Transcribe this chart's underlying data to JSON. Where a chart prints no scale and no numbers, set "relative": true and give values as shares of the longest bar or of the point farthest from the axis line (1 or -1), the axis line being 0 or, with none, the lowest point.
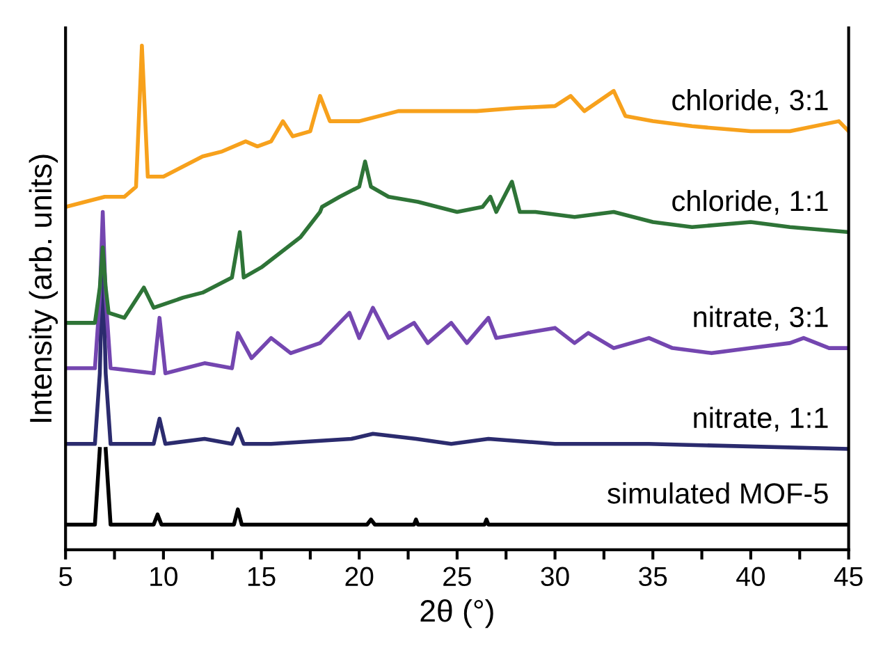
{
  "chart_data": {
    "type": "line",
    "relative": true,
    "xlabel": "2θ (°)",
    "ylabel": "Intensity (arb. units)",
    "xlim": [
      5,
      45
    ],
    "xticks": [
      5,
      {
        "value": 7.5,
        "label": null
      },
      10,
      {
        "value": 12.5,
        "label": null
      },
      15,
      {
        "value": 17.5,
        "label": null
      },
      20,
      {
        "value": 22.5,
        "label": null
      },
      25,
      {
        "value": 27.5,
        "label": null
      },
      30,
      {
        "value": 32.5,
        "label": null
      },
      35,
      {
        "value": 37.5,
        "label": null
      },
      40,
      {
        "value": 42.5,
        "label": null
      },
      45
    ],
    "tick_labels": "x",
    "grid": false,
    "legend": false,
    "marker": "none",
    "line_style": "solid",
    "series": [
      {
        "name": "simulated MOF-5",
        "color": "#000000",
        "x": [
          5,
          6.5,
          6.75,
          6.9,
          7.05,
          7.3,
          9.5,
          9.7,
          9.9,
          13.6,
          13.8,
          14.0,
          20.4,
          20.6,
          20.8,
          22.8,
          22.9,
          23.0,
          26.4,
          26.5,
          26.6,
          45
        ],
        "values": [
          0.05,
          0.05,
          0.2,
          null,
          0.2,
          0.05,
          0.05,
          0.07,
          0.05,
          0.05,
          0.08,
          0.05,
          0.05,
          0.06,
          0.05,
          0.05,
          0.06,
          0.05,
          0.05,
          0.06,
          0.05,
          0.05
        ]
      },
      {
        "name": "nitrate, 1:1",
        "color": "#2b2b6e",
        "x": [
          5,
          6.5,
          6.75,
          6.9,
          7.05,
          7.3,
          9.5,
          9.8,
          10.1,
          12.1,
          13.5,
          13.8,
          14.1,
          15.5,
          19.6,
          20.7,
          22.9,
          24.7,
          26.6,
          30.0,
          34.8,
          45
        ],
        "values": [
          0.21,
          0.21,
          0.35,
          0.58,
          0.35,
          0.21,
          0.21,
          0.26,
          0.21,
          0.22,
          0.21,
          0.24,
          0.21,
          0.21,
          0.22,
          0.23,
          0.22,
          0.21,
          0.22,
          0.21,
          0.21,
          0.2
        ]
      },
      {
        "name": "nitrate, 3:1",
        "color": "#7446b0",
        "x": [
          5,
          6.5,
          6.75,
          6.9,
          7.05,
          7.3,
          9.5,
          9.8,
          10.1,
          12.1,
          13.5,
          13.8,
          14.5,
          15.5,
          16.5,
          18,
          19.5,
          20,
          20.7,
          21.5,
          22.8,
          23.5,
          24.7,
          25.5,
          26.6,
          27,
          30,
          31,
          31.7,
          33,
          34.8,
          36,
          38,
          40,
          42,
          42.7,
          44,
          45
        ],
        "values": [
          0.36,
          0.36,
          0.5,
          0.67,
          0.5,
          0.36,
          0.35,
          0.46,
          0.35,
          0.37,
          0.36,
          0.43,
          0.38,
          0.42,
          0.39,
          0.41,
          0.47,
          0.42,
          0.48,
          0.42,
          0.45,
          0.41,
          0.45,
          0.41,
          0.46,
          0.42,
          0.44,
          0.41,
          0.43,
          0.4,
          0.42,
          0.4,
          0.39,
          0.4,
          0.41,
          0.42,
          0.4,
          0.4
        ]
      },
      {
        "name": "chloride, 1:1",
        "color": "#2e7437",
        "x": [
          5,
          6.5,
          6.75,
          6.9,
          7.05,
          7.2,
          8,
          9,
          9.5,
          11,
          12,
          13,
          13.5,
          13.9,
          14.1,
          15,
          16,
          17,
          18,
          18.1,
          19,
          20,
          20.3,
          20.6,
          21.5,
          23,
          24,
          25,
          26.3,
          26.7,
          27,
          27.8,
          28.2,
          29,
          31,
          33,
          35,
          37,
          40,
          42,
          45
        ],
        "values": [
          0.45,
          0.45,
          0.52,
          0.6,
          0.52,
          0.47,
          0.46,
          0.52,
          0.48,
          0.5,
          0.51,
          0.53,
          0.54,
          0.63,
          0.54,
          0.56,
          0.59,
          0.62,
          0.67,
          0.68,
          0.7,
          0.72,
          0.77,
          0.72,
          0.7,
          0.69,
          0.68,
          0.67,
          0.68,
          0.7,
          0.67,
          0.73,
          0.67,
          0.67,
          0.66,
          0.67,
          0.65,
          0.64,
          0.65,
          0.64,
          0.63
        ]
      },
      {
        "name": "chloride, 3:1",
        "color": "#f7a11c",
        "x": [
          5,
          6,
          7,
          8,
          8.6,
          8.9,
          9.2,
          9.5,
          10,
          11,
          12,
          13,
          14.2,
          14.8,
          15.5,
          16.1,
          16.6,
          17.5,
          18,
          18.5,
          20,
          22,
          24,
          26,
          28,
          30,
          30.8,
          31.5,
          33,
          33.6,
          35,
          37,
          40,
          42,
          44.5,
          45
        ],
        "values": [
          0.68,
          0.69,
          0.7,
          0.7,
          0.72,
          1.0,
          0.74,
          0.74,
          0.74,
          0.76,
          0.78,
          0.79,
          0.81,
          0.8,
          0.81,
          0.85,
          0.82,
          0.83,
          0.9,
          0.85,
          0.85,
          0.87,
          0.87,
          0.87,
          0.876,
          0.88,
          0.9,
          0.87,
          0.91,
          0.86,
          0.85,
          0.84,
          0.83,
          0.83,
          0.85,
          0.83
        ]
      }
    ]
  }
}
